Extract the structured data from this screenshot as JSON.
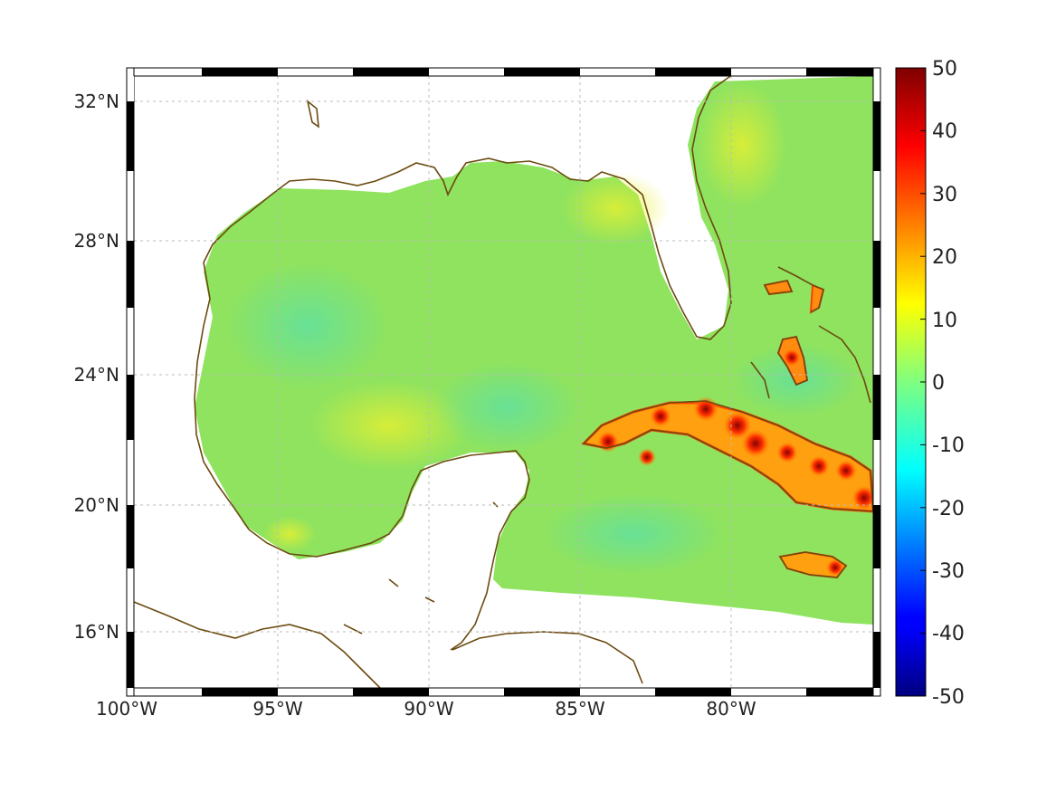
{
  "map": {
    "lat_ticks": [
      "32°N",
      "28°N",
      "24°N",
      "20°N",
      "16°N"
    ],
    "lon_ticks": [
      "100°W",
      "95°W",
      "90°W",
      "85°W",
      "80°W"
    ],
    "grid": true,
    "frame_style": "alternating black/white border"
  },
  "colorbar": {
    "ticks": [
      "50",
      "40",
      "30",
      "20",
      "10",
      "0",
      "-10",
      "-20",
      "-30",
      "-40",
      "-50"
    ],
    "colormap": "jet",
    "range": [
      -50,
      50
    ]
  },
  "colors": {
    "water_base": "#8fe35f",
    "coastline": "#6b4a10",
    "land": "#ffffff"
  }
}
